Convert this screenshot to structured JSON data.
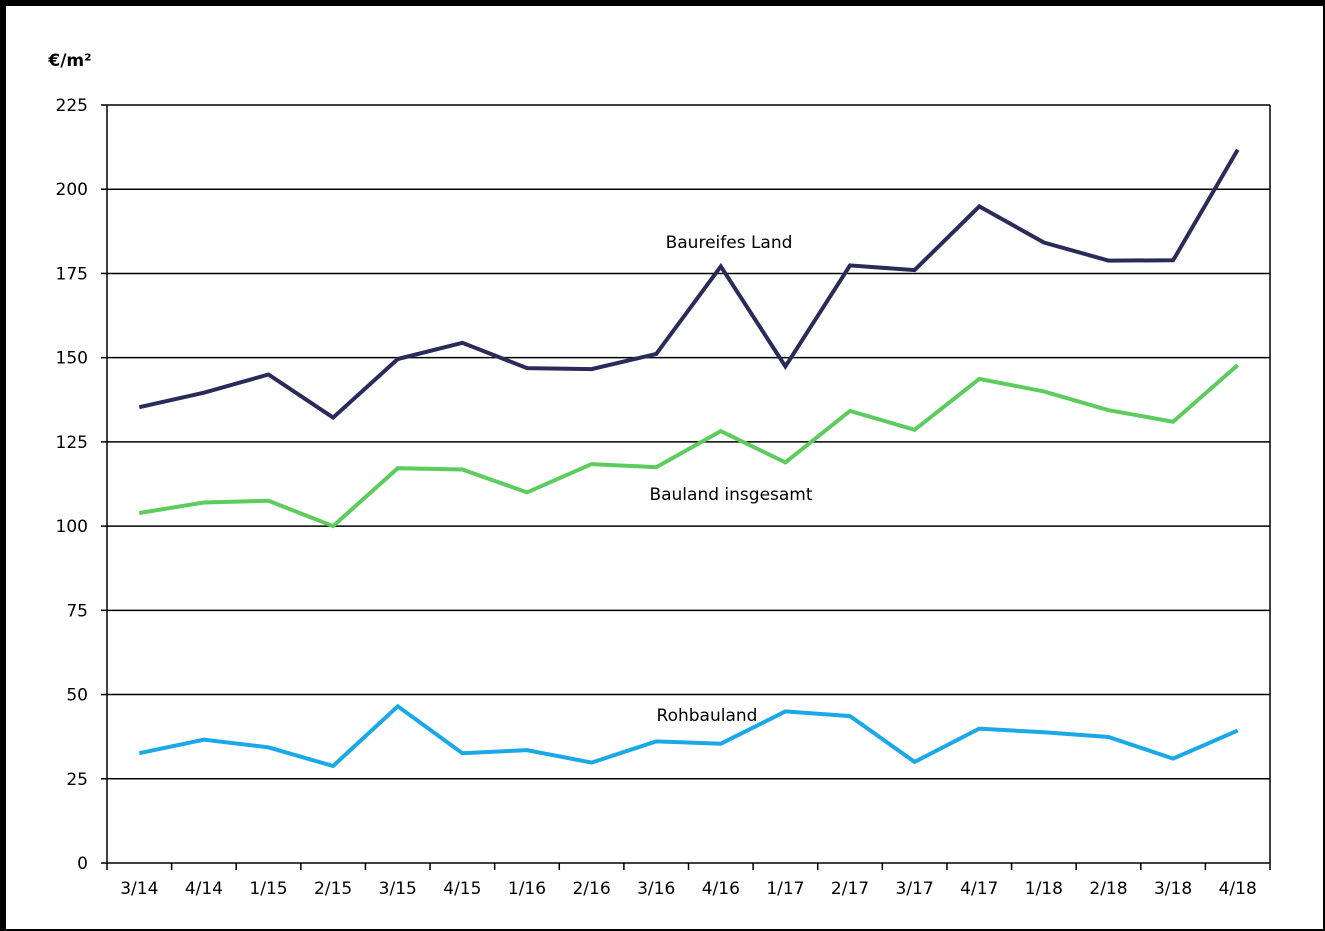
{
  "chart_data": {
    "type": "line",
    "ylabel": "€/m²",
    "ylim": [
      0,
      225
    ],
    "yticks": [
      0,
      25,
      50,
      75,
      100,
      125,
      150,
      175,
      200,
      225
    ],
    "grid": true,
    "categories": [
      "3/14",
      "4/14",
      "1/15",
      "2/15",
      "3/15",
      "4/15",
      "1/16",
      "2/16",
      "3/16",
      "4/16",
      "1/17",
      "2/17",
      "3/17",
      "4/17",
      "1/18",
      "2/18",
      "3/18",
      "4/18"
    ],
    "series": [
      {
        "name": "Baureifes Land",
        "color": "#2b2b5a",
        "values": [
          135.3,
          139.6,
          145.0,
          132.2,
          149.6,
          154.4,
          146.9,
          146.6,
          151.1,
          177.1,
          147.4,
          177.4,
          176.0,
          194.9,
          184.2,
          178.8,
          178.9,
          211.7
        ]
      },
      {
        "name": "Bauland insgesamt",
        "color": "#5ccc5c",
        "values": [
          103.9,
          107.0,
          107.5,
          100.0,
          117.2,
          116.8,
          110.0,
          118.4,
          117.5,
          128.2,
          118.9,
          134.2,
          128.6,
          143.7,
          140.0,
          134.4,
          131.0,
          147.8
        ]
      },
      {
        "name": "Rohbauland",
        "color": "#1aa8e6",
        "values": [
          32.6,
          36.6,
          34.3,
          28.8,
          46.5,
          32.6,
          33.5,
          29.8,
          36.1,
          35.4,
          45.0,
          43.6,
          30.0,
          39.9,
          38.8,
          37.4,
          31.0,
          39.3
        ]
      }
    ]
  }
}
